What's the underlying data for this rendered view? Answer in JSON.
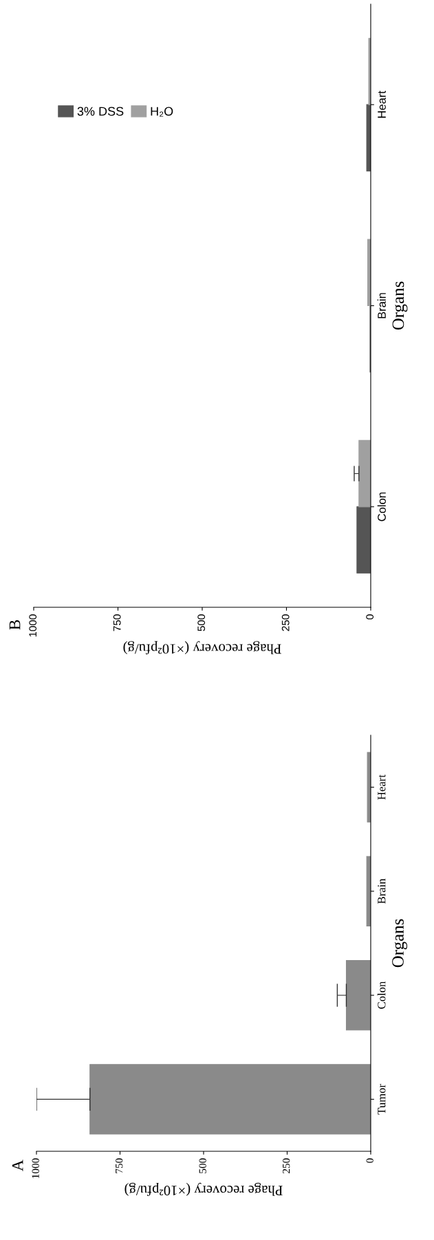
{
  "chart_data": [
    {
      "type": "bar",
      "title": "A",
      "orientation": "horizontal",
      "xlabel": "Phage recovery (×10²pfu/g)",
      "ylabel": "Organs",
      "categories": [
        "Heart",
        "Brain",
        "Colon",
        "Tumor"
      ],
      "xlim": [
        1000,
        0
      ],
      "xticks": [
        1000,
        750,
        500,
        250,
        0
      ],
      "series": [
        {
          "color": "#8a8a8a",
          "values": [
            10,
            12,
            73,
            840
          ],
          "errors": [
            null,
            null,
            27,
            160
          ]
        }
      ],
      "grid": false,
      "legend": false
    },
    {
      "type": "bar",
      "title": "B",
      "orientation": "horizontal",
      "xlabel": "Phage recovery (×10²pfu/g)",
      "ylabel": "Organs",
      "categories": [
        "Heart",
        "Brain",
        "Colon"
      ],
      "xlim": [
        1000,
        0
      ],
      "xticks": [
        1000,
        750,
        500,
        250,
        0
      ],
      "series": [
        {
          "name": "3% DSS",
          "color": "#555555",
          "values": [
            12,
            2,
            41
          ]
        },
        {
          "name": "H₂O",
          "color": "#a0a0a0",
          "values": [
            6,
            9,
            35
          ],
          "errors": [
            null,
            null,
            14
          ]
        }
      ],
      "grid": false,
      "legend": "top left"
    }
  ]
}
